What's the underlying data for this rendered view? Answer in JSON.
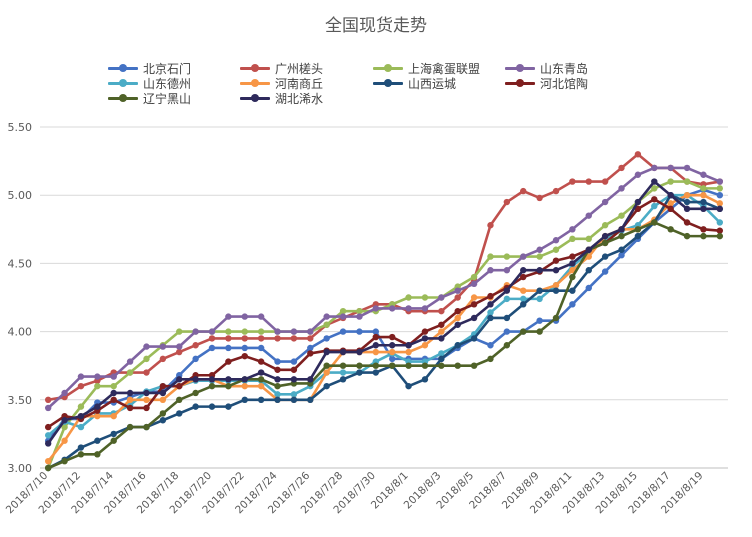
{
  "chart_data": {
    "type": "line",
    "title": "全国现货走势",
    "xlabel": "",
    "ylabel": "",
    "ylim": [
      3.0,
      5.5
    ],
    "yticks": [
      "3.00",
      "3.50",
      "4.00",
      "4.50",
      "5.00",
      "5.50"
    ],
    "grid": true,
    "legend_position": "top",
    "x": [
      "2018/7/10",
      "2018/7/11",
      "2018/7/12",
      "2018/7/13",
      "2018/7/14",
      "2018/7/15",
      "2018/7/16",
      "2018/7/17",
      "2018/7/18",
      "2018/7/19",
      "2018/7/20",
      "2018/7/21",
      "2018/7/22",
      "2018/7/23",
      "2018/7/24",
      "2018/7/25",
      "2018/7/26",
      "2018/7/27",
      "2018/7/28",
      "2018/7/29",
      "2018/7/30",
      "2018/7/31",
      "2018/8/1",
      "2018/8/2",
      "2018/8/3",
      "2018/8/4",
      "2018/8/5",
      "2018/8/6",
      "2018/8/7",
      "2018/8/8",
      "2018/8/9",
      "2018/8/10",
      "2018/8/11",
      "2018/8/12",
      "2018/8/13",
      "2018/8/14",
      "2018/8/15",
      "2018/8/16",
      "2018/8/17",
      "2018/8/18",
      "2018/8/19",
      "2018/8/20"
    ],
    "x_tick_labels": [
      "2018/7/10",
      "2018/7/12",
      "2018/7/14",
      "2018/7/16",
      "2018/7/18",
      "2018/7/20",
      "2018/7/22",
      "2018/7/24",
      "2018/7/26",
      "2018/7/28",
      "2018/7/30",
      "2018/8/1",
      "2018/8/3",
      "2018/8/5",
      "2018/8/7",
      "2018/8/9",
      "2018/8/11",
      "2018/8/13",
      "2018/8/15",
      "2018/8/17",
      "2018/8/19"
    ],
    "series": [
      {
        "name": "北京石门",
        "color": "#4472C4",
        "values": [
          3.2,
          3.36,
          3.36,
          3.48,
          3.48,
          3.52,
          3.56,
          3.56,
          3.68,
          3.8,
          3.88,
          3.88,
          3.88,
          3.88,
          3.78,
          3.78,
          3.88,
          3.95,
          4.0,
          4.0,
          4.0,
          3.8,
          3.8,
          3.8,
          3.8,
          3.88,
          3.95,
          3.9,
          4.0,
          4.0,
          4.08,
          4.08,
          4.2,
          4.32,
          4.44,
          4.56,
          4.68,
          4.8,
          4.9,
          5.0,
          5.04,
          5.0
        ]
      },
      {
        "name": "广州槎头",
        "color": "#C0504D",
        "values": [
          3.5,
          3.52,
          3.6,
          3.64,
          3.7,
          3.7,
          3.7,
          3.8,
          3.85,
          3.9,
          3.95,
          3.95,
          3.95,
          3.95,
          3.95,
          3.95,
          3.95,
          4.05,
          4.1,
          4.15,
          4.2,
          4.2,
          4.15,
          4.15,
          4.15,
          4.25,
          4.38,
          4.78,
          4.95,
          5.03,
          4.98,
          5.03,
          5.1,
          5.1,
          5.1,
          5.2,
          5.3,
          5.2,
          5.2,
          5.1,
          5.08,
          5.1
        ]
      },
      {
        "name": "上海禽蛋联盟",
        "color": "#9BBB59",
        "values": [
          3.0,
          3.3,
          3.45,
          3.6,
          3.6,
          3.7,
          3.8,
          3.9,
          4.0,
          4.0,
          4.0,
          4.0,
          4.0,
          4.0,
          4.0,
          4.0,
          4.0,
          4.05,
          4.15,
          4.15,
          4.15,
          4.2,
          4.25,
          4.25,
          4.25,
          4.33,
          4.4,
          4.55,
          4.55,
          4.55,
          4.55,
          4.6,
          4.68,
          4.68,
          4.78,
          4.85,
          4.95,
          5.05,
          5.1,
          5.1,
          5.05,
          5.05
        ]
      },
      {
        "name": "山东青岛",
        "color": "#8064A2",
        "values": [
          3.44,
          3.55,
          3.67,
          3.67,
          3.67,
          3.78,
          3.89,
          3.89,
          3.89,
          4.0,
          4.0,
          4.11,
          4.11,
          4.11,
          4.0,
          4.0,
          4.0,
          4.11,
          4.11,
          4.11,
          4.17,
          4.17,
          4.17,
          4.17,
          4.25,
          4.3,
          4.35,
          4.45,
          4.45,
          4.55,
          4.6,
          4.67,
          4.75,
          4.85,
          4.95,
          5.05,
          5.15,
          5.2,
          5.2,
          5.2,
          5.15,
          5.1
        ]
      },
      {
        "name": "山东德州",
        "color": "#4BACC6",
        "values": [
          3.24,
          3.34,
          3.3,
          3.4,
          3.4,
          3.46,
          3.56,
          3.6,
          3.6,
          3.64,
          3.64,
          3.64,
          3.64,
          3.64,
          3.54,
          3.54,
          3.6,
          3.7,
          3.7,
          3.7,
          3.78,
          3.84,
          3.78,
          3.78,
          3.84,
          3.9,
          3.98,
          4.14,
          4.24,
          4.24,
          4.24,
          4.34,
          4.48,
          4.58,
          4.68,
          4.74,
          4.78,
          4.92,
          5.0,
          5.0,
          4.92,
          4.8
        ]
      },
      {
        "name": "河南商丘",
        "color": "#F79646",
        "values": [
          3.05,
          3.2,
          3.38,
          3.38,
          3.38,
          3.5,
          3.5,
          3.5,
          3.6,
          3.65,
          3.65,
          3.6,
          3.6,
          3.6,
          3.5,
          3.5,
          3.5,
          3.7,
          3.85,
          3.85,
          3.85,
          3.85,
          3.85,
          3.9,
          4.0,
          4.1,
          4.25,
          4.25,
          4.34,
          4.3,
          4.3,
          4.34,
          4.45,
          4.55,
          4.7,
          4.75,
          4.75,
          4.82,
          4.94,
          5.0,
          5.0,
          4.94
        ]
      },
      {
        "name": "山西运城",
        "color": "#1F4E79",
        "values": [
          3.0,
          3.06,
          3.15,
          3.2,
          3.25,
          3.3,
          3.3,
          3.35,
          3.4,
          3.45,
          3.45,
          3.45,
          3.5,
          3.5,
          3.5,
          3.5,
          3.5,
          3.6,
          3.65,
          3.7,
          3.7,
          3.75,
          3.6,
          3.65,
          3.8,
          3.9,
          3.95,
          4.1,
          4.1,
          4.2,
          4.3,
          4.3,
          4.3,
          4.45,
          4.55,
          4.6,
          4.7,
          4.8,
          5.0,
          4.95,
          4.95,
          4.9
        ]
      },
      {
        "name": "河北馆陶",
        "color": "#7F1F1F",
        "values": [
          3.3,
          3.38,
          3.36,
          3.42,
          3.5,
          3.44,
          3.44,
          3.6,
          3.6,
          3.68,
          3.68,
          3.78,
          3.82,
          3.78,
          3.72,
          3.72,
          3.84,
          3.86,
          3.86,
          3.86,
          3.96,
          3.96,
          3.9,
          4.0,
          4.05,
          4.15,
          4.2,
          4.26,
          4.32,
          4.4,
          4.44,
          4.52,
          4.55,
          4.6,
          4.65,
          4.75,
          4.9,
          4.97,
          4.9,
          4.8,
          4.75,
          4.74
        ]
      },
      {
        "name": "辽宁黑山",
        "color": "#4F6228",
        "values": [
          3.0,
          3.05,
          3.1,
          3.1,
          3.2,
          3.3,
          3.3,
          3.4,
          3.5,
          3.55,
          3.6,
          3.6,
          3.65,
          3.65,
          3.6,
          3.62,
          3.62,
          3.75,
          3.75,
          3.75,
          3.75,
          3.75,
          3.75,
          3.75,
          3.75,
          3.75,
          3.75,
          3.8,
          3.9,
          4.0,
          4.0,
          4.1,
          4.4,
          4.6,
          4.65,
          4.7,
          4.75,
          4.8,
          4.75,
          4.7,
          4.7,
          4.7
        ]
      },
      {
        "name": "湖北浠水",
        "color": "#2E2A5C",
        "values": [
          3.18,
          3.35,
          3.38,
          3.45,
          3.55,
          3.55,
          3.55,
          3.55,
          3.65,
          3.65,
          3.65,
          3.65,
          3.65,
          3.7,
          3.65,
          3.65,
          3.65,
          3.85,
          3.85,
          3.85,
          3.9,
          3.9,
          3.9,
          3.95,
          3.95,
          4.05,
          4.1,
          4.2,
          4.3,
          4.45,
          4.45,
          4.45,
          4.5,
          4.6,
          4.7,
          4.75,
          4.95,
          5.1,
          5.0,
          4.9,
          4.9,
          4.9
        ]
      }
    ]
  }
}
